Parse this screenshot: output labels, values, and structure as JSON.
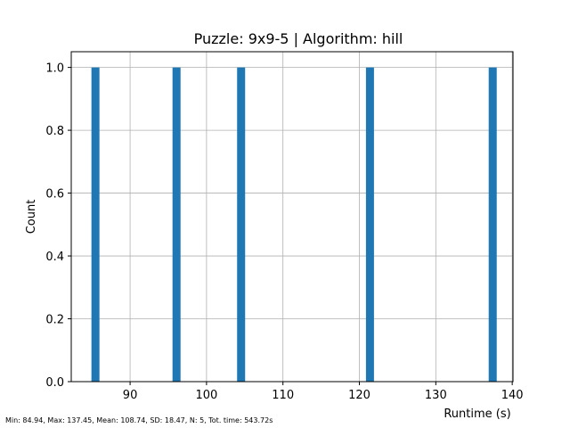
{
  "chart_data": {
    "type": "bar",
    "title": "Puzzle: 9x9-5 | Algorithm: hill",
    "xlabel": "Runtime (s)",
    "ylabel": "Count",
    "xlim": [
      82.3,
      140.1
    ],
    "ylim": [
      0,
      1.05
    ],
    "xticks": [
      90,
      100,
      110,
      120,
      130,
      140
    ],
    "yticks": [
      0.0,
      0.2,
      0.4,
      0.6,
      0.8,
      1.0
    ],
    "xtick_labels": [
      "90",
      "100",
      "110",
      "120",
      "130",
      "140"
    ],
    "ytick_labels": [
      "0.0",
      "0.2",
      "0.4",
      "0.6",
      "0.8",
      "1.0"
    ],
    "bin_width": 1.05,
    "bars": [
      {
        "x": 84.94,
        "count": 1
      },
      {
        "x": 95.55,
        "count": 1
      },
      {
        "x": 104.0,
        "count": 1
      },
      {
        "x": 120.86,
        "count": 1
      },
      {
        "x": 136.92,
        "count": 1
      }
    ],
    "grid": true,
    "bar_color": "#1f77b4",
    "stats_note": "Min: 84.94, Max: 137.45, Mean: 108.74, SD: 18.47, N: 5, Tot. time: 543.72s"
  }
}
